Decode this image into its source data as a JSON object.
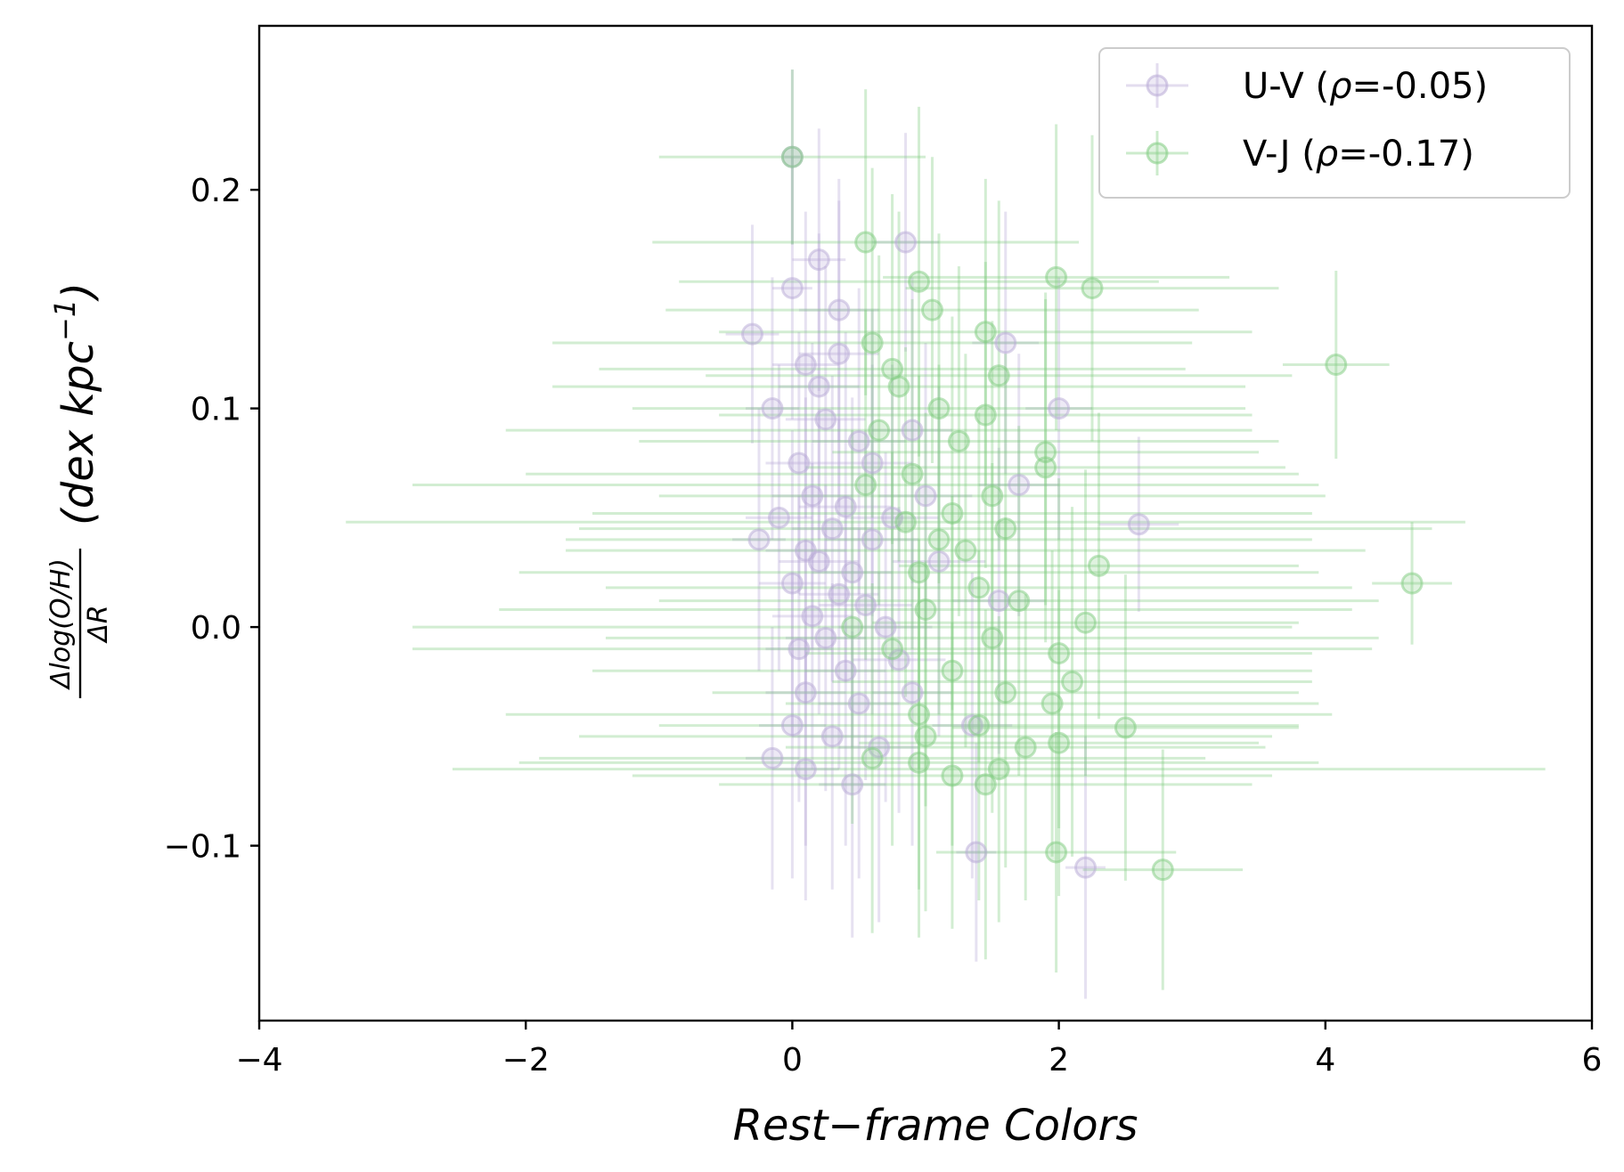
{
  "chart_data": {
    "type": "scatter",
    "title": "",
    "xlabel": "Rest−frame Colors",
    "ylabel": {
      "fraction_numerator": "Δlog(O/H)",
      "fraction_denominator": "ΔR",
      "unit": "(dex kpc",
      "unit_exponent": "−1",
      "unit_close": ")"
    },
    "xlim": [
      -4,
      6
    ],
    "ylim": [
      -0.18,
      0.275
    ],
    "x_ticks": [
      -4,
      -2,
      0,
      2,
      4,
      6
    ],
    "x_tick_labels": [
      "−4",
      "−2",
      "0",
      "2",
      "4",
      "6"
    ],
    "y_ticks": [
      -0.1,
      0.0,
      0.1,
      0.2
    ],
    "y_tick_labels": [
      "−0.1",
      "0.0",
      "0.1",
      "0.2"
    ],
    "grid": false,
    "legend_position": "top-right",
    "series": [
      {
        "name": "U-V",
        "legend_label": "U-V (",
        "legend_rho_symbol": "ρ",
        "legend_rho_value": "=-0.05)",
        "color": "#b8a9d6",
        "points": [
          {
            "x": 0.0,
            "y": 0.215,
            "xerr": 0.06,
            "yerr": 0.04
          },
          {
            "x": -0.3,
            "y": 0.134,
            "xerr": 0.2,
            "yerr": 0.05
          },
          {
            "x": 0.0,
            "y": 0.155,
            "xerr": 0.15,
            "yerr": 0.06
          },
          {
            "x": 0.2,
            "y": 0.168,
            "xerr": 0.2,
            "yerr": 0.06
          },
          {
            "x": 0.85,
            "y": 0.176,
            "xerr": 0.25,
            "yerr": 0.05
          },
          {
            "x": 0.35,
            "y": 0.145,
            "xerr": 0.3,
            "yerr": 0.06
          },
          {
            "x": 0.1,
            "y": 0.12,
            "xerr": 0.25,
            "yerr": 0.07
          },
          {
            "x": -0.15,
            "y": 0.1,
            "xerr": 0.2,
            "yerr": 0.06
          },
          {
            "x": 0.25,
            "y": 0.095,
            "xerr": 0.3,
            "yerr": 0.07
          },
          {
            "x": 0.5,
            "y": 0.085,
            "xerr": 0.35,
            "yerr": 0.07
          },
          {
            "x": 0.05,
            "y": 0.075,
            "xerr": 0.25,
            "yerr": 0.06
          },
          {
            "x": 0.15,
            "y": 0.06,
            "xerr": 0.3,
            "yerr": 0.07
          },
          {
            "x": 0.4,
            "y": 0.055,
            "xerr": 0.35,
            "yerr": 0.08
          },
          {
            "x": -0.1,
            "y": 0.05,
            "xerr": 0.25,
            "yerr": 0.07
          },
          {
            "x": 0.3,
            "y": 0.045,
            "xerr": 0.3,
            "yerr": 0.07
          },
          {
            "x": 0.6,
            "y": 0.04,
            "xerr": 0.35,
            "yerr": 0.08
          },
          {
            "x": 0.1,
            "y": 0.035,
            "xerr": 0.3,
            "yerr": 0.07
          },
          {
            "x": -0.25,
            "y": 0.04,
            "xerr": 0.2,
            "yerr": 0.06
          },
          {
            "x": 0.2,
            "y": 0.03,
            "xerr": 0.3,
            "yerr": 0.07
          },
          {
            "x": 0.45,
            "y": 0.025,
            "xerr": 0.3,
            "yerr": 0.08
          },
          {
            "x": 0.0,
            "y": 0.02,
            "xerr": 0.25,
            "yerr": 0.07
          },
          {
            "x": 0.35,
            "y": 0.015,
            "xerr": 0.3,
            "yerr": 0.08
          },
          {
            "x": 0.55,
            "y": 0.01,
            "xerr": 0.35,
            "yerr": 0.08
          },
          {
            "x": 0.15,
            "y": 0.005,
            "xerr": 0.3,
            "yerr": 0.07
          },
          {
            "x": 0.7,
            "y": 0.0,
            "xerr": 0.35,
            "yerr": 0.08
          },
          {
            "x": 0.25,
            "y": -0.005,
            "xerr": 0.3,
            "yerr": 0.07
          },
          {
            "x": 0.05,
            "y": -0.01,
            "xerr": 0.25,
            "yerr": 0.07
          },
          {
            "x": 0.4,
            "y": -0.02,
            "xerr": 0.3,
            "yerr": 0.08
          },
          {
            "x": 0.8,
            "y": -0.015,
            "xerr": 0.35,
            "yerr": 0.07
          },
          {
            "x": 0.1,
            "y": -0.03,
            "xerr": 0.3,
            "yerr": 0.07
          },
          {
            "x": 0.5,
            "y": -0.035,
            "xerr": 0.3,
            "yerr": 0.08
          },
          {
            "x": 0.0,
            "y": -0.045,
            "xerr": 0.25,
            "yerr": 0.07
          },
          {
            "x": 0.3,
            "y": -0.05,
            "xerr": 0.3,
            "yerr": 0.07
          },
          {
            "x": 0.65,
            "y": -0.055,
            "xerr": 0.3,
            "yerr": 0.08
          },
          {
            "x": -0.15,
            "y": -0.06,
            "xerr": 0.2,
            "yerr": 0.06
          },
          {
            "x": 0.1,
            "y": -0.065,
            "xerr": 0.25,
            "yerr": 0.06
          },
          {
            "x": 0.45,
            "y": -0.072,
            "xerr": 0.25,
            "yerr": 0.07
          },
          {
            "x": 0.9,
            "y": 0.09,
            "xerr": 0.3,
            "yerr": 0.07
          },
          {
            "x": 1.0,
            "y": 0.06,
            "xerr": 0.35,
            "yerr": 0.07
          },
          {
            "x": 1.1,
            "y": 0.03,
            "xerr": 0.35,
            "yerr": 0.08
          },
          {
            "x": 1.35,
            "y": -0.045,
            "xerr": 0.3,
            "yerr": 0.07
          },
          {
            "x": 1.6,
            "y": 0.13,
            "xerr": 0.25,
            "yerr": 0.06
          },
          {
            "x": 1.55,
            "y": 0.012,
            "xerr": 0.35,
            "yerr": 0.07
          },
          {
            "x": 1.7,
            "y": 0.065,
            "xerr": 0.3,
            "yerr": 0.06
          },
          {
            "x": 2.0,
            "y": 0.1,
            "xerr": 0.25,
            "yerr": 0.06
          },
          {
            "x": 2.6,
            "y": 0.047,
            "xerr": 0.3,
            "yerr": 0.04
          },
          {
            "x": 1.38,
            "y": -0.103,
            "xerr": 0.15,
            "yerr": 0.05
          },
          {
            "x": 2.2,
            "y": -0.11,
            "xerr": 0.15,
            "yerr": 0.06
          },
          {
            "x": 0.2,
            "y": 0.11,
            "xerr": 0.3,
            "yerr": 0.07
          },
          {
            "x": 0.35,
            "y": 0.125,
            "xerr": 0.3,
            "yerr": 0.07
          },
          {
            "x": 0.6,
            "y": 0.075,
            "xerr": 0.3,
            "yerr": 0.07
          },
          {
            "x": 0.75,
            "y": 0.05,
            "xerr": 0.35,
            "yerr": 0.07
          },
          {
            "x": 0.9,
            "y": -0.03,
            "xerr": 0.3,
            "yerr": 0.07
          }
        ]
      },
      {
        "name": "V-J",
        "legend_label": "V-J (",
        "legend_rho_symbol": "ρ",
        "legend_rho_value": "=-0.17)",
        "color": "#7fcc7f",
        "points": [
          {
            "x": 0.0,
            "y": 0.215,
            "xerr": 1.0,
            "yerr": 0.04
          },
          {
            "x": 0.55,
            "y": 0.176,
            "xerr": 1.6,
            "yerr": 0.07
          },
          {
            "x": 0.95,
            "y": 0.158,
            "xerr": 1.8,
            "yerr": 0.08
          },
          {
            "x": 1.98,
            "y": 0.16,
            "xerr": 1.3,
            "yerr": 0.07
          },
          {
            "x": 2.25,
            "y": 0.155,
            "xerr": 1.4,
            "yerr": 0.07
          },
          {
            "x": 4.08,
            "y": 0.12,
            "xerr": 0.4,
            "yerr": 0.043
          },
          {
            "x": 4.65,
            "y": 0.02,
            "xerr": 0.3,
            "yerr": 0.028
          },
          {
            "x": 1.05,
            "y": 0.145,
            "xerr": 2.0,
            "yerr": 0.07
          },
          {
            "x": 0.6,
            "y": 0.13,
            "xerr": 2.4,
            "yerr": 0.08
          },
          {
            "x": 1.45,
            "y": 0.135,
            "xerr": 2.0,
            "yerr": 0.07
          },
          {
            "x": 1.55,
            "y": 0.115,
            "xerr": 2.2,
            "yerr": 0.08
          },
          {
            "x": 0.8,
            "y": 0.11,
            "xerr": 2.6,
            "yerr": 0.08
          },
          {
            "x": 1.1,
            "y": 0.1,
            "xerr": 2.3,
            "yerr": 0.08
          },
          {
            "x": 1.45,
            "y": 0.097,
            "xerr": 2.0,
            "yerr": 0.07
          },
          {
            "x": 0.65,
            "y": 0.09,
            "xerr": 2.8,
            "yerr": 0.08
          },
          {
            "x": 1.25,
            "y": 0.085,
            "xerr": 2.4,
            "yerr": 0.08
          },
          {
            "x": 1.9,
            "y": 0.08,
            "xerr": 1.6,
            "yerr": 0.07
          },
          {
            "x": 1.9,
            "y": 0.073,
            "xerr": 1.8,
            "yerr": 0.08
          },
          {
            "x": 0.9,
            "y": 0.07,
            "xerr": 2.9,
            "yerr": 0.08
          },
          {
            "x": 1.5,
            "y": 0.06,
            "xerr": 2.5,
            "yerr": 0.08
          },
          {
            "x": 1.2,
            "y": 0.052,
            "xerr": 2.7,
            "yerr": 0.09
          },
          {
            "x": 0.85,
            "y": 0.048,
            "xerr": 4.2,
            "yerr": 0.08
          },
          {
            "x": 1.6,
            "y": 0.045,
            "xerr": 3.2,
            "yerr": 0.08
          },
          {
            "x": 1.1,
            "y": 0.04,
            "xerr": 2.8,
            "yerr": 0.08
          },
          {
            "x": 1.3,
            "y": 0.035,
            "xerr": 3.0,
            "yerr": 0.09
          },
          {
            "x": 2.3,
            "y": 0.028,
            "xerr": 1.5,
            "yerr": 0.07
          },
          {
            "x": 0.95,
            "y": 0.025,
            "xerr": 3.0,
            "yerr": 0.09
          },
          {
            "x": 1.4,
            "y": 0.018,
            "xerr": 2.8,
            "yerr": 0.08
          },
          {
            "x": 1.7,
            "y": 0.012,
            "xerr": 2.7,
            "yerr": 0.08
          },
          {
            "x": 1.0,
            "y": 0.008,
            "xerr": 3.2,
            "yerr": 0.09
          },
          {
            "x": 2.2,
            "y": 0.002,
            "xerr": 1.6,
            "yerr": 0.07
          },
          {
            "x": 1.5,
            "y": -0.005,
            "xerr": 2.9,
            "yerr": 0.08
          },
          {
            "x": 0.75,
            "y": -0.01,
            "xerr": 3.6,
            "yerr": 0.09
          },
          {
            "x": 2.0,
            "y": -0.012,
            "xerr": 1.9,
            "yerr": 0.08
          },
          {
            "x": 1.2,
            "y": -0.02,
            "xerr": 2.7,
            "yerr": 0.08
          },
          {
            "x": 2.1,
            "y": -0.025,
            "xerr": 1.8,
            "yerr": 0.08
          },
          {
            "x": 1.6,
            "y": -0.03,
            "xerr": 2.2,
            "yerr": 0.08
          },
          {
            "x": 1.95,
            "y": -0.035,
            "xerr": 2.0,
            "yerr": 0.07
          },
          {
            "x": 0.95,
            "y": -0.04,
            "xerr": 3.1,
            "yerr": 0.08
          },
          {
            "x": 2.5,
            "y": -0.046,
            "xerr": 1.3,
            "yerr": 0.07
          },
          {
            "x": 1.4,
            "y": -0.045,
            "xerr": 2.4,
            "yerr": 0.08
          },
          {
            "x": 1.0,
            "y": -0.05,
            "xerr": 2.6,
            "yerr": 0.08
          },
          {
            "x": 2.0,
            "y": -0.053,
            "xerr": 1.5,
            "yerr": 0.07
          },
          {
            "x": 1.75,
            "y": -0.055,
            "xerr": 1.8,
            "yerr": 0.07
          },
          {
            "x": 0.95,
            "y": -0.062,
            "xerr": 3.0,
            "yerr": 0.08
          },
          {
            "x": 1.55,
            "y": -0.065,
            "xerr": 4.1,
            "yerr": 0.07
          },
          {
            "x": 1.2,
            "y": -0.068,
            "xerr": 2.4,
            "yerr": 0.07
          },
          {
            "x": 1.45,
            "y": -0.072,
            "xerr": 2.0,
            "yerr": 0.08
          },
          {
            "x": 1.98,
            "y": -0.103,
            "xerr": 0.9,
            "yerr": 0.055
          },
          {
            "x": 2.78,
            "y": -0.111,
            "xerr": 0.6,
            "yerr": 0.055
          },
          {
            "x": 0.75,
            "y": 0.118,
            "xerr": 2.2,
            "yerr": 0.08
          },
          {
            "x": 0.55,
            "y": 0.065,
            "xerr": 3.4,
            "yerr": 0.08
          },
          {
            "x": 0.45,
            "y": 0.0,
            "xerr": 3.3,
            "yerr": 0.09
          },
          {
            "x": 0.6,
            "y": -0.06,
            "xerr": 2.5,
            "yerr": 0.08
          }
        ]
      }
    ]
  }
}
